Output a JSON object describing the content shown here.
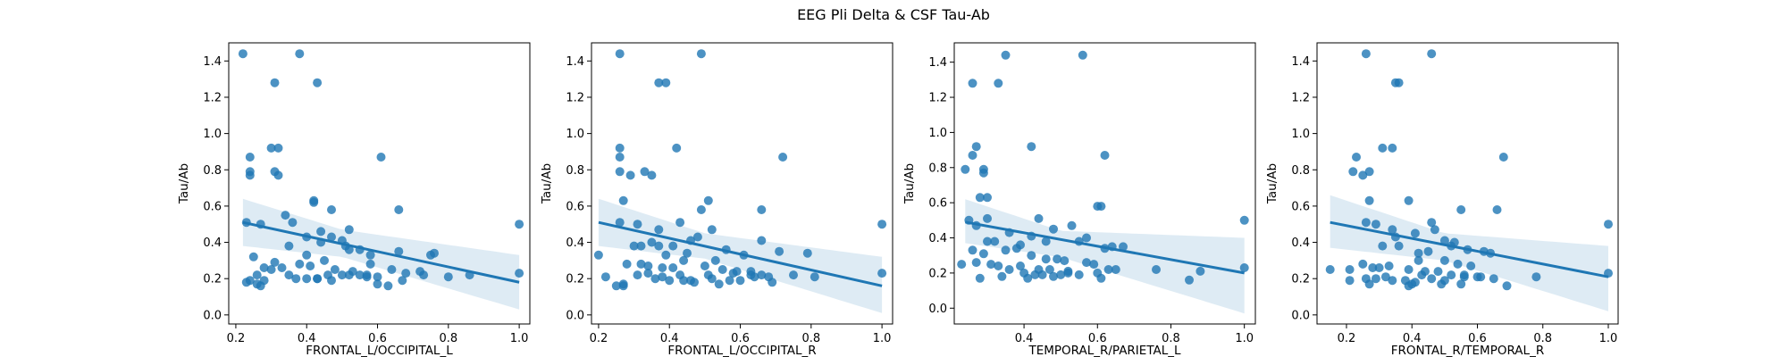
{
  "figure": {
    "title": "EEG Pli Delta & CSF Tau-Ab"
  },
  "colors": {
    "points": "#1f77b4",
    "line": "#1f77b4",
    "band": "#1f77b4",
    "axes": "#000000"
  },
  "chart_data": [
    {
      "type": "scatter",
      "xlabel": "FRONTAL_L/OCCIPITAL_L",
      "ylabel": "Tau/Ab",
      "xlim": [
        0.18,
        1.03
      ],
      "ylim": [
        -0.05,
        1.5
      ],
      "xticks": [
        0.2,
        0.4,
        0.6,
        0.8,
        1.0
      ],
      "xtick_labels": [
        "0.2",
        "0.4",
        "0.6",
        "0.8",
        "1.0"
      ],
      "yticks": [
        0.0,
        0.2,
        0.4,
        0.6,
        0.8,
        1.0,
        1.2,
        1.4
      ],
      "ytick_labels": [
        "0.0",
        "0.2",
        "0.4",
        "0.6",
        "0.8",
        "1.0",
        "1.2",
        "1.4"
      ],
      "x": [
        0.22,
        0.38,
        0.31,
        0.43,
        0.24,
        0.24,
        0.24,
        0.3,
        0.32,
        0.31,
        0.32,
        0.61,
        0.34,
        0.42,
        0.42,
        0.47,
        0.66,
        0.23,
        0.27,
        0.36,
        0.44,
        0.52,
        0.4,
        0.44,
        0.47,
        0.35,
        0.5,
        0.51,
        0.55,
        0.58,
        0.66,
        0.75,
        0.76,
        0.52,
        0.4,
        0.45,
        0.25,
        0.31,
        0.33,
        0.38,
        0.41,
        0.48,
        0.28,
        0.3,
        0.26,
        0.35,
        0.43,
        0.53,
        0.57,
        0.6,
        0.64,
        0.68,
        0.72,
        0.86,
        1.0,
        0.24,
        0.26,
        0.28,
        0.37,
        0.4,
        0.43,
        0.47,
        0.52,
        0.55,
        0.57,
        0.6,
        0.63,
        0.67,
        0.73,
        0.8,
        0.23,
        0.27,
        0.5,
        0.46,
        0.58,
        1.0
      ],
      "y": [
        1.44,
        1.44,
        1.28,
        1.28,
        0.87,
        0.79,
        0.77,
        0.92,
        0.92,
        0.79,
        0.77,
        0.87,
        0.55,
        0.63,
        0.62,
        0.58,
        0.58,
        0.51,
        0.5,
        0.51,
        0.46,
        0.47,
        0.43,
        0.4,
        0.43,
        0.38,
        0.41,
        0.38,
        0.36,
        0.33,
        0.35,
        0.33,
        0.34,
        0.36,
        0.33,
        0.3,
        0.32,
        0.29,
        0.26,
        0.28,
        0.27,
        0.25,
        0.26,
        0.25,
        0.22,
        0.22,
        0.2,
        0.24,
        0.22,
        0.21,
        0.25,
        0.23,
        0.24,
        0.22,
        0.23,
        0.19,
        0.17,
        0.19,
        0.2,
        0.2,
        0.2,
        0.19,
        0.22,
        0.22,
        0.21,
        0.17,
        0.16,
        0.19,
        0.22,
        0.21,
        0.18,
        0.16,
        0.22,
        0.22,
        0.28,
        0.5
      ],
      "regression": {
        "x": [
          0.22,
          1.0
        ],
        "y": [
          0.51,
          0.18
        ]
      },
      "ci_band": {
        "x": [
          0.22,
          0.5,
          1.0
        ],
        "lower": [
          0.38,
          0.32,
          0.03
        ],
        "upper": [
          0.64,
          0.47,
          0.33
        ]
      }
    },
    {
      "type": "scatter",
      "xlabel": "FRONTAL_L/OCCIPITAL_R",
      "ylabel": "Tau/Ab",
      "xlim": [
        0.18,
        1.03
      ],
      "ylim": [
        -0.05,
        1.5
      ],
      "xticks": [
        0.2,
        0.4,
        0.6,
        0.8,
        1.0
      ],
      "xtick_labels": [
        "0.2",
        "0.4",
        "0.6",
        "0.8",
        "1.0"
      ],
      "yticks": [
        0.0,
        0.2,
        0.4,
        0.6,
        0.8,
        1.0,
        1.2,
        1.4
      ],
      "ytick_labels": [
        "0.0",
        "0.2",
        "0.4",
        "0.6",
        "0.8",
        "1.0",
        "1.2",
        "1.4"
      ],
      "x": [
        0.26,
        0.49,
        0.37,
        0.39,
        0.26,
        0.26,
        0.26,
        0.29,
        0.33,
        0.35,
        0.42,
        0.72,
        0.27,
        0.51,
        0.49,
        0.66,
        0.26,
        0.31,
        0.37,
        0.43,
        0.52,
        0.48,
        0.46,
        0.41,
        0.35,
        0.56,
        0.61,
        0.66,
        0.71,
        0.79,
        0.3,
        0.32,
        0.39,
        0.45,
        0.53,
        0.28,
        0.32,
        0.34,
        0.38,
        0.41,
        0.5,
        0.55,
        0.59,
        0.63,
        0.66,
        0.75,
        0.22,
        0.27,
        0.31,
        0.36,
        0.4,
        0.44,
        0.47,
        0.52,
        0.57,
        0.63,
        0.68,
        0.81,
        1.0,
        0.2,
        0.25,
        0.34,
        0.38,
        0.43,
        0.46,
        0.54,
        0.6,
        0.64,
        0.69,
        1.0,
        0.27,
        0.44,
        0.51,
        0.58,
        0.37
      ],
      "y": [
        1.44,
        1.44,
        1.28,
        1.28,
        0.92,
        0.87,
        0.79,
        0.77,
        0.79,
        0.77,
        0.92,
        0.87,
        0.63,
        0.63,
        0.58,
        0.58,
        0.51,
        0.5,
        0.47,
        0.51,
        0.47,
        0.43,
        0.41,
        0.38,
        0.4,
        0.36,
        0.33,
        0.41,
        0.35,
        0.34,
        0.38,
        0.38,
        0.33,
        0.34,
        0.3,
        0.28,
        0.28,
        0.27,
        0.26,
        0.26,
        0.27,
        0.25,
        0.24,
        0.24,
        0.22,
        0.22,
        0.21,
        0.17,
        0.22,
        0.2,
        0.19,
        0.19,
        0.18,
        0.2,
        0.19,
        0.22,
        0.21,
        0.21,
        0.23,
        0.33,
        0.16,
        0.23,
        0.21,
        0.22,
        0.19,
        0.17,
        0.19,
        0.21,
        0.18,
        0.5,
        0.16,
        0.3,
        0.22,
        0.23,
        0.38
      ],
      "regression": {
        "x": [
          0.2,
          1.0
        ],
        "y": [
          0.51,
          0.16
        ]
      },
      "ci_band": {
        "x": [
          0.2,
          0.5,
          1.0
        ],
        "lower": [
          0.38,
          0.31,
          0.01
        ],
        "upper": [
          0.64,
          0.45,
          0.32
        ]
      }
    },
    {
      "type": "scatter",
      "xlabel": "TEMPORAL_R/PARIETAL_L",
      "ylabel": "Tau/Ab",
      "xlim": [
        0.21,
        1.03
      ],
      "ylim": [
        -0.09,
        1.51
      ],
      "xticks": [
        0.4,
        0.6,
        0.8,
        1.0
      ],
      "xtick_labels": [
        "0.4",
        "0.6",
        "0.8",
        "1.0"
      ],
      "yticks": [
        0.0,
        0.2,
        0.4,
        0.6,
        0.8,
        1.0,
        1.2,
        1.4
      ],
      "ytick_labels": [
        "0.0",
        "0.2",
        "0.4",
        "0.6",
        "0.8",
        "1.0",
        "1.2",
        "1.4"
      ],
      "x": [
        0.35,
        0.56,
        0.26,
        0.33,
        0.27,
        0.26,
        0.24,
        0.29,
        0.29,
        0.42,
        0.62,
        0.28,
        0.3,
        0.6,
        0.61,
        0.3,
        0.25,
        0.27,
        0.36,
        0.44,
        0.53,
        0.48,
        0.42,
        0.46,
        0.57,
        0.39,
        0.55,
        0.62,
        0.64,
        0.67,
        0.3,
        0.32,
        0.35,
        0.38,
        0.42,
        0.46,
        0.49,
        0.51,
        0.57,
        0.59,
        0.27,
        0.31,
        0.33,
        0.39,
        0.44,
        0.47,
        0.52,
        0.6,
        0.65,
        0.76,
        0.23,
        0.28,
        0.36,
        0.4,
        0.43,
        0.45,
        0.48,
        0.52,
        0.55,
        0.61,
        0.88,
        1.0,
        0.26,
        0.34,
        0.41,
        0.5,
        0.63,
        0.85,
        1.0,
        0.29
      ],
      "y": [
        1.44,
        1.44,
        1.28,
        1.28,
        0.92,
        0.87,
        0.79,
        0.79,
        0.77,
        0.92,
        0.87,
        0.63,
        0.63,
        0.58,
        0.58,
        0.51,
        0.5,
        0.47,
        0.43,
        0.51,
        0.47,
        0.45,
        0.41,
        0.38,
        0.4,
        0.36,
        0.38,
        0.34,
        0.35,
        0.35,
        0.38,
        0.38,
        0.33,
        0.34,
        0.3,
        0.28,
        0.28,
        0.27,
        0.26,
        0.25,
        0.26,
        0.25,
        0.24,
        0.24,
        0.22,
        0.22,
        0.21,
        0.2,
        0.22,
        0.22,
        0.25,
        0.17,
        0.22,
        0.2,
        0.19,
        0.19,
        0.18,
        0.2,
        0.19,
        0.17,
        0.21,
        0.23,
        0.33,
        0.18,
        0.17,
        0.19,
        0.22,
        0.16,
        0.5,
        0.31
      ],
      "regression": {
        "x": [
          0.24,
          1.0
        ],
        "y": [
          0.49,
          0.2
        ]
      },
      "ci_band": {
        "x": [
          0.24,
          0.5,
          1.0
        ],
        "lower": [
          0.37,
          0.29,
          -0.03
        ],
        "upper": [
          0.62,
          0.44,
          0.4
        ]
      }
    },
    {
      "type": "scatter",
      "xlabel": "FRONTAL_R/TEMPORAL_R",
      "ylabel": "Tau/Ab",
      "xlim": [
        0.11,
        1.03
      ],
      "ylim": [
        -0.05,
        1.5
      ],
      "xticks": [
        0.2,
        0.4,
        0.6,
        0.8,
        1.0
      ],
      "xtick_labels": [
        "0.2",
        "0.4",
        "0.6",
        "0.8",
        "1.0"
      ],
      "yticks": [
        0.0,
        0.2,
        0.4,
        0.6,
        0.8,
        1.0,
        1.2,
        1.4
      ],
      "ytick_labels": [
        "0.0",
        "0.2",
        "0.4",
        "0.6",
        "0.8",
        "1.0",
        "1.2",
        "1.4"
      ],
      "x": [
        0.26,
        0.46,
        0.35,
        0.36,
        0.31,
        0.34,
        0.23,
        0.22,
        0.25,
        0.27,
        0.68,
        0.27,
        0.39,
        0.55,
        0.66,
        0.26,
        0.29,
        0.46,
        0.47,
        0.34,
        0.35,
        0.41,
        0.5,
        0.52,
        0.53,
        0.57,
        0.62,
        0.64,
        0.31,
        0.36,
        0.42,
        0.45,
        0.5,
        0.54,
        0.58,
        0.25,
        0.28,
        0.3,
        0.33,
        0.39,
        0.44,
        0.48,
        0.52,
        0.56,
        0.6,
        0.65,
        0.15,
        0.21,
        0.26,
        0.29,
        0.34,
        0.38,
        0.41,
        0.46,
        0.5,
        0.55,
        0.61,
        0.78,
        1.0,
        0.21,
        0.27,
        0.32,
        0.39,
        0.43,
        0.49,
        0.56,
        0.69,
        1.0,
        0.42,
        0.4
      ],
      "y": [
        1.44,
        1.44,
        1.28,
        1.28,
        0.92,
        0.92,
        0.87,
        0.79,
        0.77,
        0.79,
        0.87,
        0.63,
        0.63,
        0.58,
        0.58,
        0.51,
        0.5,
        0.51,
        0.47,
        0.47,
        0.43,
        0.45,
        0.41,
        0.38,
        0.4,
        0.36,
        0.35,
        0.34,
        0.38,
        0.38,
        0.34,
        0.35,
        0.3,
        0.28,
        0.27,
        0.28,
        0.26,
        0.26,
        0.27,
        0.25,
        0.24,
        0.24,
        0.22,
        0.22,
        0.21,
        0.2,
        0.25,
        0.25,
        0.2,
        0.2,
        0.19,
        0.19,
        0.18,
        0.2,
        0.19,
        0.17,
        0.21,
        0.21,
        0.23,
        0.19,
        0.17,
        0.21,
        0.16,
        0.22,
        0.17,
        0.21,
        0.16,
        0.5,
        0.3,
        0.17
      ],
      "regression": {
        "x": [
          0.15,
          1.0
        ],
        "y": [
          0.51,
          0.21
        ]
      },
      "ci_band": {
        "x": [
          0.15,
          0.5,
          1.0
        ],
        "lower": [
          0.37,
          0.3,
          0.02
        ],
        "upper": [
          0.66,
          0.45,
          0.38
        ]
      }
    }
  ]
}
